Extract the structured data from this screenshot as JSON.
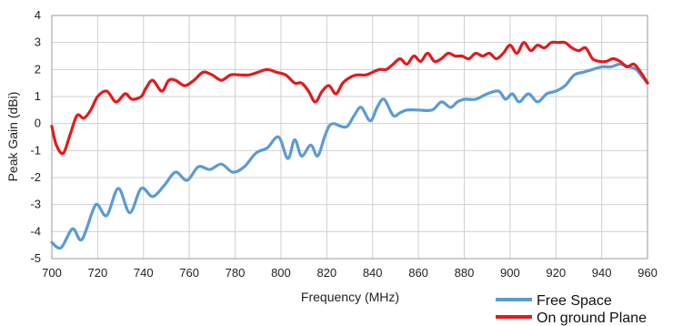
{
  "chart_data": {
    "type": "line",
    "title": "",
    "xlabel": "Frequency (MHz)",
    "ylabel": "Peak Gain (dBi)",
    "xlim": [
      700,
      960
    ],
    "ylim": [
      -5,
      4
    ],
    "xticks": [
      700,
      720,
      740,
      760,
      780,
      800,
      820,
      840,
      860,
      880,
      900,
      920,
      940,
      960
    ],
    "yticks": [
      -5,
      -4,
      -3,
      -2,
      -1,
      0,
      1,
      2,
      3,
      4
    ],
    "grid": true,
    "legend_position": "bottom-right",
    "series": [
      {
        "name": "Free Space",
        "color": "#5b9bd5",
        "x": [
          700,
          704,
          709,
          713,
          718,
          720,
          724,
          729,
          734,
          739,
          744,
          749,
          754,
          759,
          764,
          769,
          774,
          779,
          784,
          789,
          794,
          799,
          803,
          806,
          809,
          813,
          816,
          819,
          821,
          823,
          826,
          829,
          832,
          835,
          839,
          842,
          845,
          849,
          852,
          855,
          860,
          866,
          870,
          874,
          877,
          880,
          885,
          890,
          895,
          898,
          901,
          904,
          908,
          912,
          916,
          920,
          924,
          928,
          932,
          936,
          940,
          944,
          948,
          952,
          955,
          958,
          960
        ],
        "y": [
          -4.4,
          -4.6,
          -3.9,
          -4.3,
          -3.2,
          -3.0,
          -3.4,
          -2.4,
          -3.3,
          -2.4,
          -2.7,
          -2.3,
          -1.8,
          -2.1,
          -1.6,
          -1.7,
          -1.5,
          -1.8,
          -1.6,
          -1.1,
          -0.9,
          -0.5,
          -1.3,
          -0.6,
          -1.2,
          -0.8,
          -1.2,
          -0.5,
          -0.1,
          0.0,
          -0.1,
          -0.1,
          0.3,
          0.6,
          0.1,
          0.6,
          0.9,
          0.3,
          0.4,
          0.5,
          0.5,
          0.5,
          0.8,
          0.6,
          0.8,
          0.9,
          0.9,
          1.1,
          1.2,
          0.9,
          1.1,
          0.8,
          1.1,
          0.8,
          1.1,
          1.2,
          1.4,
          1.8,
          1.9,
          2.0,
          2.1,
          2.1,
          2.2,
          2.1,
          2.0,
          1.7,
          1.5
        ]
      },
      {
        "name": "On ground Plane",
        "color": "#e31a1c",
        "x": [
          700,
          702,
          705,
          708,
          711,
          714,
          717,
          720,
          724,
          728,
          732,
          735,
          739,
          741,
          744,
          748,
          751,
          754,
          758,
          762,
          766,
          770,
          774,
          778,
          782,
          786,
          790,
          794,
          798,
          802,
          806,
          809,
          812,
          815,
          818,
          821,
          824,
          827,
          830,
          833,
          837,
          840,
          843,
          846,
          849,
          852,
          855,
          858,
          861,
          864,
          867,
          870,
          873,
          876,
          879,
          882,
          885,
          888,
          891,
          894,
          897,
          900,
          903,
          906,
          909,
          912,
          915,
          918,
          921,
          924,
          927,
          930,
          933,
          936,
          939,
          942,
          945,
          948,
          951,
          954,
          957,
          960
        ],
        "y": [
          -0.1,
          -0.8,
          -1.1,
          -0.4,
          0.3,
          0.2,
          0.5,
          1.0,
          1.2,
          0.8,
          1.1,
          0.9,
          1.0,
          1.3,
          1.6,
          1.2,
          1.6,
          1.6,
          1.4,
          1.6,
          1.9,
          1.8,
          1.6,
          1.8,
          1.8,
          1.8,
          1.9,
          2.0,
          1.9,
          1.8,
          1.5,
          1.5,
          1.2,
          0.8,
          1.2,
          1.4,
          1.1,
          1.5,
          1.7,
          1.8,
          1.8,
          1.9,
          2.0,
          2.0,
          2.2,
          2.4,
          2.2,
          2.5,
          2.3,
          2.6,
          2.3,
          2.4,
          2.6,
          2.5,
          2.5,
          2.4,
          2.6,
          2.5,
          2.6,
          2.4,
          2.6,
          2.9,
          2.6,
          3.0,
          2.7,
          2.9,
          2.8,
          3.0,
          3.0,
          3.0,
          2.8,
          2.7,
          2.8,
          2.4,
          2.3,
          2.3,
          2.4,
          2.3,
          2.1,
          2.2,
          1.9,
          1.5
        ]
      }
    ]
  }
}
